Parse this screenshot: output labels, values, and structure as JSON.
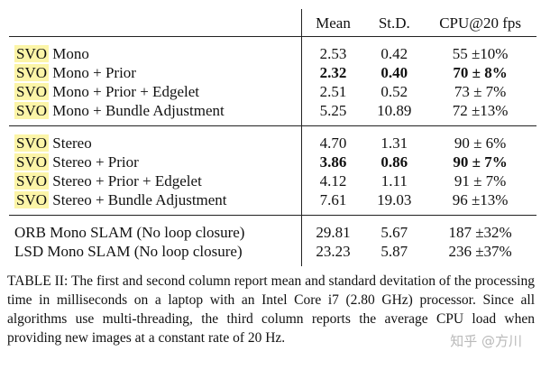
{
  "table": {
    "headers": [
      "Mean",
      "St.D.",
      "CPU@20 fps"
    ],
    "groups": [
      [
        {
          "prefix": "SVO",
          "name": "Mono",
          "mean": "2.53",
          "std": "0.42",
          "cpu": "55 ±10%",
          "bold": false
        },
        {
          "prefix": "SVO",
          "name": "Mono + Prior",
          "mean": "2.32",
          "std": "0.40",
          "cpu": "70 ± 8%",
          "bold": true
        },
        {
          "prefix": "SVO",
          "name": "Mono + Prior + Edgelet",
          "mean": "2.51",
          "std": "0.52",
          "cpu": "73 ± 7%",
          "bold": false
        },
        {
          "prefix": "SVO",
          "name": "Mono + Bundle Adjustment",
          "mean": "5.25",
          "std": "10.89",
          "cpu": "72 ±13%",
          "bold": false
        }
      ],
      [
        {
          "prefix": "SVO",
          "name": "Stereo",
          "mean": "4.70",
          "std": "1.31",
          "cpu": "90 ± 6%",
          "bold": false
        },
        {
          "prefix": "SVO",
          "name": "Stereo + Prior",
          "mean": "3.86",
          "std": "0.86",
          "cpu": "90 ± 7%",
          "bold": true
        },
        {
          "prefix": "SVO",
          "name": "Stereo + Prior + Edgelet",
          "mean": "4.12",
          "std": "1.11",
          "cpu": "91 ± 7%",
          "bold": false
        },
        {
          "prefix": "SVO",
          "name": "Stereo + Bundle Adjustment",
          "mean": "7.61",
          "std": "19.03",
          "cpu": "96 ±13%",
          "bold": false
        }
      ],
      [
        {
          "prefix": "",
          "name": "ORB Mono SLAM (No loop closure)",
          "mean": "29.81",
          "std": "5.67",
          "cpu": "187 ±32%",
          "bold": false
        },
        {
          "prefix": "",
          "name": "LSD Mono SLAM (No loop closure)",
          "mean": "23.23",
          "std": "5.87",
          "cpu": "236 ±37%",
          "bold": false
        }
      ]
    ]
  },
  "caption": "TABLE II: The first and second column report mean and standard devitation of the processing time in milliseconds on a laptop with an Intel Core i7 (2.80 GHz) processor. Since all algorithms use multi-threading, the third column reports the average CPU load when providing new images at a constant rate of 20 Hz.",
  "watermark": "知乎 @方川",
  "colors": {
    "highlight": "#fcf5a8",
    "text": "#111111",
    "watermark": "#b9b9b9"
  }
}
